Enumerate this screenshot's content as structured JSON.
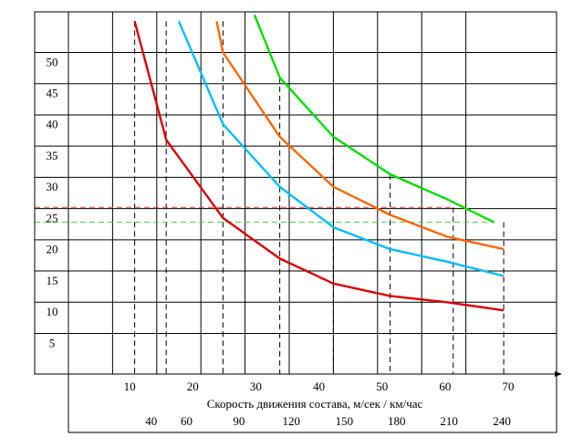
{
  "chart_data": {
    "type": "line",
    "title": "",
    "xlabel": "Скорость движения состава, м/сек / км/час",
    "ylabel": "",
    "xlim": [
      0,
      77
    ],
    "ylim": [
      0,
      58
    ],
    "grid": true,
    "x_ticks": [
      "10",
      "20",
      "30",
      "40",
      "50",
      "60",
      "70"
    ],
    "x_tick_values": [
      10,
      20,
      30,
      40,
      50,
      60,
      70
    ],
    "kmh_ticks": [
      "40",
      "60",
      "90",
      "120",
      "150",
      "180",
      "210",
      "240"
    ],
    "kmh_tick_values": [
      11.1,
      16.7,
      25,
      33.3,
      41.7,
      50,
      58.3,
      66.7
    ],
    "y_ticks": [
      "5",
      "10",
      "15",
      "20",
      "25",
      "30",
      "35",
      "40",
      "45",
      "50"
    ],
    "y_tick_values": [
      5,
      10,
      15,
      20,
      25,
      30,
      35,
      40,
      45,
      50
    ],
    "series": [
      {
        "color": "#e00000",
        "points": [
          [
            10.5,
            56.5
          ],
          [
            15.5,
            37.5
          ],
          [
            24.5,
            25
          ],
          [
            33.5,
            18.5
          ],
          [
            42,
            14.5
          ],
          [
            51,
            12.5
          ],
          [
            60,
            11.5
          ],
          [
            69,
            10.2
          ]
        ]
      },
      {
        "color": "#00bfff",
        "points": [
          [
            17.5,
            56.5
          ],
          [
            24.5,
            40
          ],
          [
            33.5,
            30
          ],
          [
            42,
            23.5
          ],
          [
            51,
            20
          ],
          [
            60,
            18
          ],
          [
            69,
            15.7
          ]
        ]
      },
      {
        "color": "#ff6600",
        "points": [
          [
            23.5,
            56.5
          ],
          [
            24.5,
            51.5
          ],
          [
            33.5,
            38
          ],
          [
            42,
            30
          ],
          [
            51,
            25.5
          ],
          [
            60,
            22
          ],
          [
            69,
            20
          ]
        ]
      },
      {
        "color": "#00e000",
        "points": [
          [
            29.5,
            57.5
          ],
          [
            33.5,
            47.5
          ],
          [
            42,
            38
          ],
          [
            51,
            32
          ],
          [
            60,
            28
          ],
          [
            67.5,
            24.3
          ]
        ]
      }
    ],
    "reference_lines": [
      {
        "color": "#ff4040",
        "y": 26.7,
        "x_from": 0,
        "x_to": 61
      },
      {
        "color": "#40d040",
        "y": 24.3,
        "x_from": 0,
        "x_to": 67.5
      }
    ],
    "drop_lines": [
      {
        "x": 10.5,
        "y": 56.5
      },
      {
        "x": 15.5,
        "y": 56.5
      },
      {
        "x": 24.5,
        "y": 56.5
      },
      {
        "x": 33.5,
        "y": 47.5
      },
      {
        "x": 42,
        "y": 38
      },
      {
        "x": 51,
        "y": 32
      },
      {
        "x": 61,
        "y": 26.7
      },
      {
        "x": 69,
        "y": 24.3
      }
    ]
  }
}
